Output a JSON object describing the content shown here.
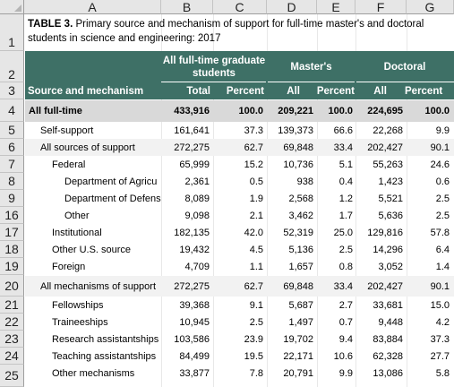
{
  "columns": [
    "A",
    "B",
    "C",
    "D",
    "E",
    "F",
    "G"
  ],
  "row_numbers": [
    "1",
    "2",
    "3",
    "4",
    "5",
    "6",
    "7",
    "8",
    "9",
    "16",
    "17",
    "18",
    "19",
    "20",
    "21",
    "22",
    "23",
    "24",
    "25"
  ],
  "title": {
    "label": "TABLE 3.",
    "text": " Primary source and mechanism of support for full-time master's and doctoral students in science and engineering: 2017"
  },
  "header": {
    "group_all": "All full-time graduate students",
    "group_masters": "Master's",
    "group_doctoral": "Doctoral",
    "source_label": "Source and mechanism",
    "sub_total": "Total",
    "sub_percent": "Percent",
    "sub_all": "All",
    "sub_percent2": "Percent",
    "sub_all2": "All",
    "sub_percent3": "Percent"
  },
  "rows": [
    {
      "label": "All full-time",
      "b": "433,916",
      "c": "100.0",
      "d": "209,221",
      "e": "100.0",
      "f": "224,695",
      "g": "100.0"
    },
    {
      "label": "Self-support",
      "b": "161,641",
      "c": "37.3",
      "d": "139,373",
      "e": "66.6",
      "f": "22,268",
      "g": "9.9"
    },
    {
      "label": "All sources of support",
      "b": "272,275",
      "c": "62.7",
      "d": "69,848",
      "e": "33.4",
      "f": "202,427",
      "g": "90.1"
    },
    {
      "label": "Federal",
      "b": "65,999",
      "c": "15.2",
      "d": "10,736",
      "e": "5.1",
      "f": "55,263",
      "g": "24.6"
    },
    {
      "label": "Department of Agricu",
      "b": "2,361",
      "c": "0.5",
      "d": "938",
      "e": "0.4",
      "f": "1,423",
      "g": "0.6"
    },
    {
      "label": "Department of Defens",
      "b": "8,089",
      "c": "1.9",
      "d": "2,568",
      "e": "1.2",
      "f": "5,521",
      "g": "2.5"
    },
    {
      "label": "Other",
      "b": "9,098",
      "c": "2.1",
      "d": "3,462",
      "e": "1.7",
      "f": "5,636",
      "g": "2.5"
    },
    {
      "label": "Institutional",
      "b": "182,135",
      "c": "42.0",
      "d": "52,319",
      "e": "25.0",
      "f": "129,816",
      "g": "57.8"
    },
    {
      "label": "Other U.S. source",
      "b": "19,432",
      "c": "4.5",
      "d": "5,136",
      "e": "2.5",
      "f": "14,296",
      "g": "6.4"
    },
    {
      "label": "Foreign",
      "b": "4,709",
      "c": "1.1",
      "d": "1,657",
      "e": "0.8",
      "f": "3,052",
      "g": "1.4"
    },
    {
      "label": "All mechanisms of support",
      "b": "272,275",
      "c": "62.7",
      "d": "69,848",
      "e": "33.4",
      "f": "202,427",
      "g": "90.1"
    },
    {
      "label": "Fellowships",
      "b": "39,368",
      "c": "9.1",
      "d": "5,687",
      "e": "2.7",
      "f": "33,681",
      "g": "15.0"
    },
    {
      "label": "Traineeships",
      "b": "10,945",
      "c": "2.5",
      "d": "1,497",
      "e": "0.7",
      "f": "9,448",
      "g": "4.2"
    },
    {
      "label": "Research assistantships",
      "b": "103,586",
      "c": "23.9",
      "d": "19,702",
      "e": "9.4",
      "f": "83,884",
      "g": "37.3"
    },
    {
      "label": "Teaching assistantships",
      "b": "84,499",
      "c": "19.5",
      "d": "22,171",
      "e": "10.6",
      "f": "62,328",
      "g": "27.7"
    },
    {
      "label": "Other mechanisms",
      "b": "33,877",
      "c": "7.8",
      "d": "20,791",
      "e": "9.9",
      "f": "13,086",
      "g": "5.8"
    }
  ],
  "colors": {
    "header_band": "#3e7066",
    "total_row_band": "#d9d9d9",
    "section_row_band": "#f2f2f2",
    "sheet_header_bg": "#e6e6e6"
  }
}
